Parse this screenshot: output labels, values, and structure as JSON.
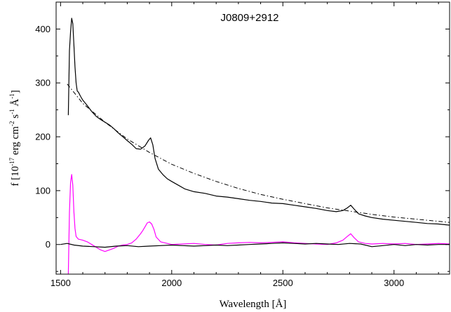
{
  "chart_data": {
    "type": "line",
    "title": "J0809+2912",
    "xlabel": "Wavelength [Å]",
    "ylabel": "f  [10⁻¹⁷ erg cm⁻² s⁻¹ Å⁻¹]",
    "ylabel_parts": {
      "prefix": "f  [10",
      "exp1": "-17",
      "mid1": " erg cm",
      "exp2": "-2",
      "mid2": " s",
      "exp3": "-1",
      "mid3": " Å",
      "exp4": "-1",
      "suffix": "]"
    },
    "xlim": [
      1480,
      3250
    ],
    "ylim": [
      -55,
      450
    ],
    "x_ticks": [
      1500,
      2000,
      2500,
      3000
    ],
    "x_tick_labels": [
      "1500",
      "2000",
      "2500",
      "3000"
    ],
    "y_ticks": [
      0,
      100,
      200,
      300,
      400
    ],
    "y_tick_labels": [
      "0",
      "100",
      "200",
      "300",
      "400"
    ],
    "grid": false,
    "series": [
      {
        "style": "solid",
        "color": "#000000",
        "x": [
          1535,
          1540,
          1545,
          1550,
          1555,
          1560,
          1565,
          1570,
          1575,
          1580,
          1590,
          1600,
          1620,
          1640,
          1660,
          1680,
          1700,
          1720,
          1740,
          1760,
          1780,
          1800,
          1820,
          1840,
          1860,
          1880,
          1895,
          1905,
          1915,
          1925,
          1940,
          1960,
          1980,
          2000,
          2030,
          2060,
          2100,
          2150,
          2200,
          2250,
          2300,
          2350,
          2400,
          2450,
          2500,
          2550,
          2600,
          2650,
          2700,
          2740,
          2770,
          2790,
          2805,
          2820,
          2840,
          2870,
          2900,
          2950,
          3000,
          3050,
          3100,
          3150,
          3200,
          3250
        ],
        "y": [
          240,
          360,
          395,
          420,
          410,
          370,
          330,
          300,
          285,
          283,
          275,
          268,
          258,
          247,
          238,
          232,
          227,
          222,
          215,
          207,
          200,
          193,
          186,
          178,
          177,
          183,
          193,
          198,
          185,
          160,
          140,
          130,
          122,
          117,
          110,
          103,
          98,
          95,
          90,
          88,
          85,
          82,
          80,
          77,
          76,
          73,
          70,
          67,
          63,
          61,
          63,
          68,
          73,
          66,
          57,
          53,
          50,
          47,
          45,
          43,
          41,
          39,
          38,
          36
        ]
      },
      {
        "style": "dashdot",
        "color": "#000000",
        "x": [
          1530,
          1600,
          1700,
          1800,
          1900,
          2000,
          2100,
          2200,
          2300,
          2400,
          2500,
          2600,
          2700,
          2800,
          2900,
          3000,
          3100,
          3200,
          3250
        ],
        "y": [
          298,
          262,
          227,
          196,
          171,
          149,
          132,
          117,
          104,
          93,
          84,
          76,
          68,
          62,
          56,
          51,
          47,
          43,
          41
        ]
      },
      {
        "style": "solid",
        "color": "#ff00ff",
        "x": [
          1535,
          1540,
          1545,
          1550,
          1555,
          1560,
          1565,
          1570,
          1580,
          1600,
          1620,
          1640,
          1660,
          1680,
          1700,
          1720,
          1740,
          1760,
          1780,
          1800,
          1820,
          1840,
          1860,
          1870,
          1880,
          1890,
          1900,
          1910,
          1920,
          1930,
          1950,
          1980,
          2000,
          2050,
          2100,
          2150,
          2200,
          2250,
          2300,
          2350,
          2400,
          2450,
          2500,
          2550,
          2600,
          2650,
          2700,
          2740,
          2770,
          2790,
          2805,
          2820,
          2840,
          2870,
          2900,
          2950,
          3000,
          3050,
          3100,
          3150,
          3200,
          3250
        ],
        "y": [
          -55,
          60,
          115,
          130,
          110,
          60,
          30,
          15,
          10,
          8,
          5,
          0,
          -5,
          -10,
          -13,
          -10,
          -7,
          -3,
          -1,
          0,
          3,
          10,
          20,
          26,
          33,
          40,
          42,
          38,
          28,
          14,
          5,
          2,
          0,
          1,
          2,
          0,
          -1,
          2,
          3,
          4,
          3,
          4,
          5,
          3,
          2,
          1,
          0,
          3,
          8,
          15,
          20,
          13,
          5,
          2,
          1,
          2,
          1,
          2,
          0,
          1,
          2,
          1
        ]
      },
      {
        "style": "solid",
        "color": "#000000",
        "x": [
          1500,
          1530,
          1560,
          1600,
          1650,
          1700,
          1750,
          1800,
          1850,
          1900,
          1950,
          2000,
          2050,
          2100,
          2150,
          2200,
          2250,
          2300,
          2350,
          2400,
          2450,
          2500,
          2550,
          2600,
          2650,
          2700,
          2750,
          2800,
          2850,
          2900,
          2950,
          3000,
          3050,
          3100,
          3150,
          3200,
          3250
        ],
        "y": [
          0,
          2,
          -1,
          -3,
          -4,
          -5,
          -3,
          -2,
          -4,
          -3,
          -2,
          -1,
          -2,
          -3,
          -2,
          -1,
          -2,
          -1,
          0,
          1,
          2,
          3,
          2,
          1,
          2,
          1,
          0,
          2,
          1,
          -4,
          -2,
          0,
          -2,
          0,
          -1,
          0,
          0
        ]
      }
    ]
  }
}
